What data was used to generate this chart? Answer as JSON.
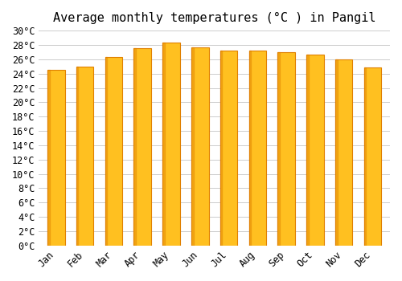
{
  "title": "Average monthly temperatures (°C ) in Pangil",
  "months": [
    "Jan",
    "Feb",
    "Mar",
    "Apr",
    "May",
    "Jun",
    "Jul",
    "Aug",
    "Sep",
    "Oct",
    "Nov",
    "Dec"
  ],
  "values": [
    24.5,
    25.0,
    26.3,
    27.5,
    28.3,
    27.7,
    27.2,
    27.2,
    27.0,
    26.6,
    26.0,
    24.9
  ],
  "bar_color_face": "#FFC020",
  "bar_color_edge": "#E08000",
  "background_color": "#FFFFFF",
  "plot_bg_color": "#FFFFFF",
  "grid_color": "#CCCCCC",
  "ylim": [
    0,
    30
  ],
  "ytick_step": 2,
  "title_fontsize": 11,
  "tick_fontsize": 8.5,
  "tick_font": "monospace"
}
